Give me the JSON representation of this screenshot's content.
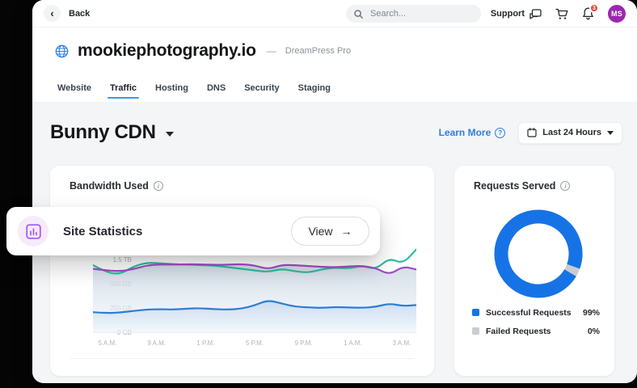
{
  "topbar": {
    "back_label": "Back",
    "search_placeholder": "Search...",
    "support_label": "Support",
    "notification_count": "3",
    "avatar_initials": "MS"
  },
  "site_header": {
    "domain": "mookiephotography.io",
    "separator": "—",
    "plan": "DreamPress Pro"
  },
  "tabs": [
    {
      "label": "Website",
      "active": false
    },
    {
      "label": "Traffic",
      "active": true
    },
    {
      "label": "Hosting",
      "active": false
    },
    {
      "label": "DNS",
      "active": false
    },
    {
      "label": "Security",
      "active": false
    },
    {
      "label": "Staging",
      "active": false
    }
  ],
  "page": {
    "title": "Bunny CDN",
    "learn_more_label": "Learn More",
    "time_range": "Last 24 Hours"
  },
  "overlay": {
    "title": "Site Statistics",
    "view_label": "View"
  },
  "cards": {
    "bandwidth": {
      "title": "Bandwidth Used"
    },
    "requests": {
      "title": "Requests Served"
    }
  },
  "icons": {
    "back_chevron": "‹",
    "arrow_right": "→",
    "question_mark": "?",
    "info": "i"
  },
  "colors": {
    "accent_blue": "#2f7de1",
    "tab_underline": "#3f9bd8",
    "donut_blue": "#1673e6",
    "line_blue": "#2e7cd6",
    "line_purple": "#a04ec2",
    "line_teal": "#2bbfa0",
    "failed_gray": "#c9cdd2",
    "avatar_purple": "#9c27b0",
    "badge_red": "#e8453c",
    "overlay_icon_purple": "#a855f7"
  },
  "chart_data": [
    {
      "type": "line",
      "title": "Bandwidth Used",
      "x_labels": [
        "5 A.M.",
        "9 A.M.",
        "1 P.M.",
        "5 P.M.",
        "9 P.M.",
        "1 A.M.",
        "3 A.M."
      ],
      "y_ticks": [
        {
          "label": "0 GB",
          "value": 0
        },
        {
          "label": "250 GB",
          "value": 250
        },
        {
          "label": "500 GB",
          "value": 500
        },
        {
          "label": "1.5 TB",
          "value": 1500
        }
      ],
      "unit": "GB",
      "legend_position": "none",
      "grid": false,
      "series": [
        {
          "name": "bandwidth-blue",
          "color": "#2e7cd6",
          "values": [
            215,
            205,
            212,
            228,
            242,
            246,
            242,
            252,
            256,
            246,
            242,
            250,
            285,
            340,
            305,
            272,
            265,
            258,
            268,
            264,
            260,
            270,
            305,
            278,
            288
          ]
        },
        {
          "name": "bandwidth-purple",
          "color": "#a04ec2",
          "values": [
            1150,
            1080,
            1050,
            1130,
            1290,
            1330,
            1320,
            1340,
            1330,
            1310,
            1320,
            1340,
            1290,
            1130,
            1310,
            1300,
            1260,
            1230,
            1210,
            1250,
            1270,
            1180,
            900,
            1250,
            1120
          ]
        },
        {
          "name": "bandwidth-teal",
          "color": "#2bbfa0",
          "values": [
            1300,
            1000,
            920,
            1250,
            1400,
            1380,
            1340,
            1320,
            1300,
            1280,
            1220,
            1150,
            1080,
            1020,
            1150,
            1040,
            990,
            1130,
            1200,
            1160,
            1280,
            1120,
            1600,
            1350,
            1950
          ]
        }
      ]
    },
    {
      "type": "donut",
      "title": "Requests Served",
      "slices": [
        {
          "label": "Successful Requests",
          "value": 99,
          "display": "99%",
          "color": "#1673e6"
        },
        {
          "label": "Failed Requests",
          "value": 0,
          "display": "0%",
          "color": "#c9cdd2"
        }
      ]
    }
  ]
}
